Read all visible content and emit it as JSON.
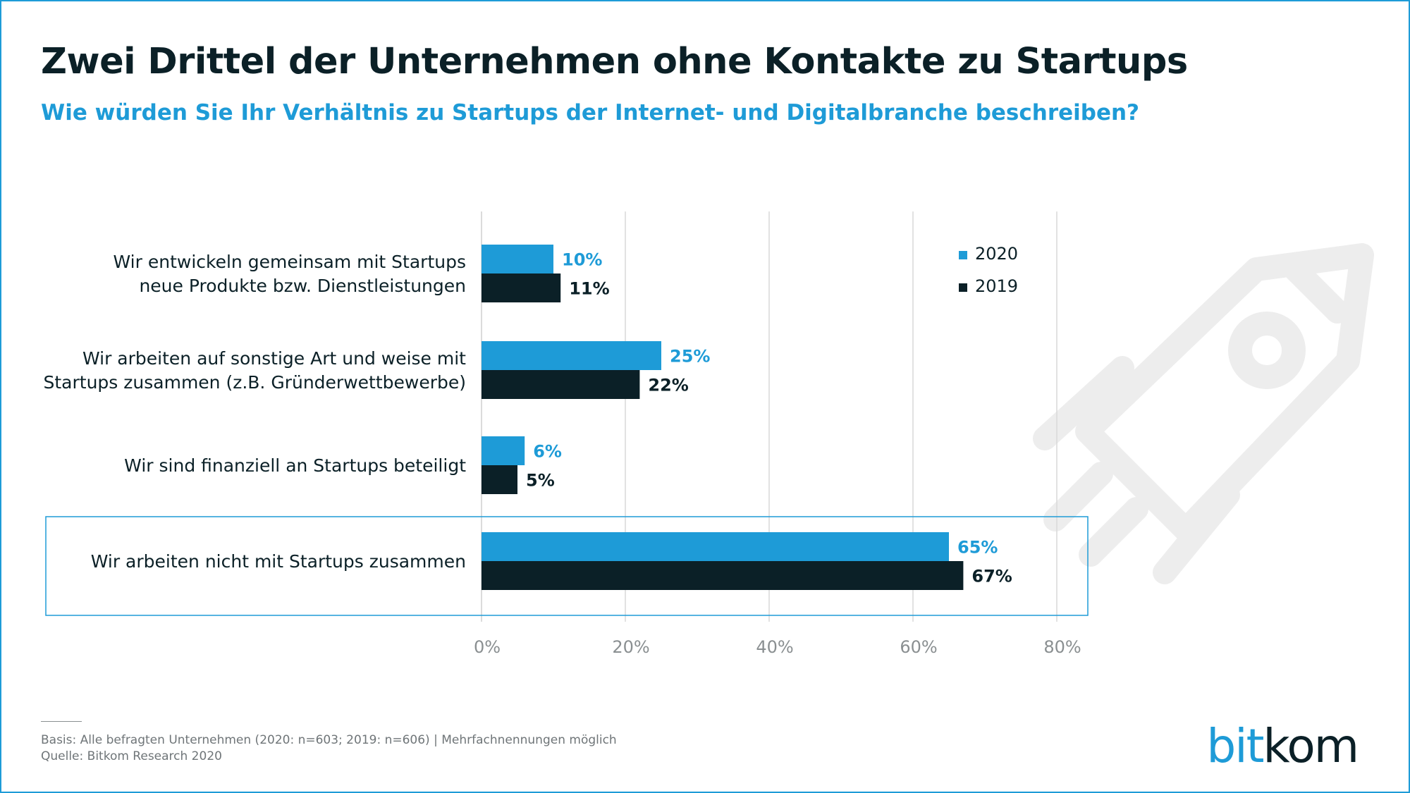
{
  "header": {
    "title": "Zwei Drittel der Unternehmen ohne Kontakte zu Startups",
    "subtitle": "Wie würden Sie Ihr Verhältnis zu Startups der Internet- und Digitalbranche beschreiben?"
  },
  "colors": {
    "series_2020": "#1e9bd7",
    "series_2019": "#0b2027",
    "accent": "#1e9bd7",
    "grid": "#d9d9d9",
    "tick_text": "#8a8f91"
  },
  "chart_data": {
    "type": "bar",
    "orientation": "horizontal",
    "title": "Zwei Drittel der Unternehmen ohne Kontakte zu Startups",
    "subtitle": "Wie würden Sie Ihr Verhältnis zu Startups der Internet- und Digitalbranche beschreiben?",
    "categories": [
      [
        "Wir entwickeln gemeinsam mit Startups",
        "neue Produkte bzw. Dienstleistungen"
      ],
      [
        "Wir arbeiten auf sonstige Art und weise mit",
        "Startups zusammen (z.B. Gründerwettbewerbe)"
      ],
      [
        "Wir sind finanziell an Startups beteiligt"
      ],
      [
        "Wir arbeiten nicht mit Startups zusammen"
      ]
    ],
    "series": [
      {
        "name": "2020",
        "values": [
          10,
          25,
          6,
          65
        ],
        "labels": [
          "10%",
          "25%",
          "6%",
          "65%"
        ]
      },
      {
        "name": "2019",
        "values": [
          11,
          22,
          5,
          67
        ],
        "labels": [
          "11%",
          "22%",
          "5%",
          "67%"
        ]
      }
    ],
    "xlim": [
      0,
      80
    ],
    "ticks": [
      0,
      20,
      40,
      60,
      80
    ],
    "tick_labels": [
      "0%",
      "20%",
      "40%",
      "60%",
      "80%"
    ],
    "unit": "%",
    "grid": true,
    "legend_position": "top-right",
    "highlighted_category": 3
  },
  "footer": {
    "basis": "Basis: Alle befragten Unternehmen (2020: n=603; 2019: n=606) | Mehrfachnennungen möglich",
    "source": "Quelle: Bitkom Research 2020",
    "logo_part1": "bit",
    "logo_part2": "kom"
  },
  "icons": {
    "background_illustration": "rocket-icon"
  }
}
